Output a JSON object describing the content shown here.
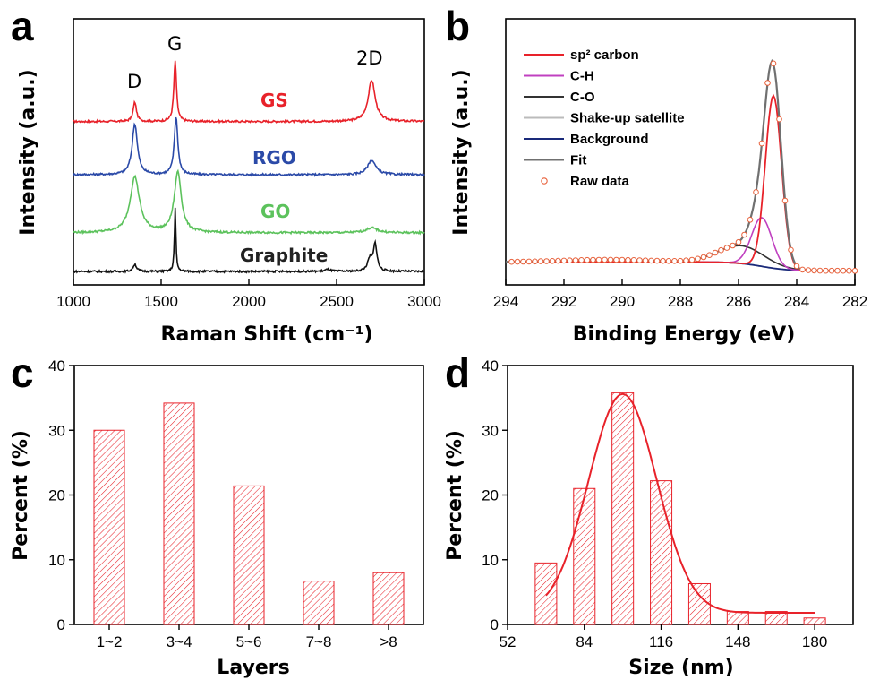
{
  "panels": {
    "a": {
      "letter": "a"
    },
    "b": {
      "letter": "b"
    },
    "c": {
      "letter": "c"
    },
    "d": {
      "letter": "d"
    }
  },
  "chart_data": [
    {
      "id": "a",
      "type": "line",
      "xlabel": "Raman Shift (cm⁻¹)",
      "ylabel": "Intensity (a.u.)",
      "xlim": [
        1000,
        3000
      ],
      "xticks": [
        "1000",
        "1500",
        "2000",
        "2500",
        "3000"
      ],
      "peak_labels": [
        "D",
        "G",
        "2D"
      ],
      "series": [
        {
          "name": "GS",
          "color": "#e8222a",
          "baseline": 0.62,
          "peaks": [
            [
              1350,
              0.08,
              11
            ],
            [
              1580,
              0.25,
              9
            ],
            [
              2700,
              0.17,
              24
            ]
          ]
        },
        {
          "name": "RGO",
          "color": "#2b4aa8",
          "baseline": 0.4,
          "peaks": [
            [
              1350,
              0.21,
              18
            ],
            [
              1585,
              0.24,
              12
            ],
            [
              2700,
              0.06,
              28
            ]
          ]
        },
        {
          "name": "GO",
          "color": "#5cc25c",
          "baseline": 0.16,
          "peaks": [
            [
              1350,
              0.23,
              32
            ],
            [
              1595,
              0.25,
              24
            ],
            [
              2700,
              0.02,
              40
            ]
          ]
        },
        {
          "name": "Graphite",
          "color": "#111111",
          "baseline": 0.0,
          "peaks": [
            [
              1350,
              0.03,
              12
            ],
            [
              1580,
              0.26,
              5
            ],
            [
              2450,
              0.008,
              20
            ],
            [
              2690,
              0.05,
              16
            ],
            [
              2720,
              0.11,
              12
            ]
          ]
        }
      ]
    },
    {
      "id": "b",
      "type": "line",
      "xlabel": "Binding Energy (eV)",
      "ylabel": "Intensity (a.u.)",
      "xlim": [
        294,
        282
      ],
      "xticks": [
        "294",
        "292",
        "290",
        "288",
        "286",
        "284",
        "282"
      ],
      "legend_placement": "top-left",
      "series": [
        {
          "name": "sp² carbon",
          "color": "#e8222a"
        },
        {
          "name": "C-H",
          "color": "#c040c0"
        },
        {
          "name": "C-O",
          "color": "#333333"
        },
        {
          "name": "Shake-up satellite",
          "color": "#bbbbbb"
        },
        {
          "name": "Background",
          "color": "#1a2a7a"
        },
        {
          "name": "Fit",
          "color": "#707070"
        },
        {
          "name": "Raw data",
          "color": "#e8603a",
          "marker": "open-circle"
        }
      ]
    },
    {
      "id": "c",
      "type": "bar",
      "xlabel": "Layers",
      "ylabel": "Percent (%)",
      "ylim": [
        0,
        40
      ],
      "yticks": [
        "0",
        "10",
        "20",
        "30",
        "40"
      ],
      "categories": [
        "1~2",
        "3~4",
        "5~6",
        "7~8",
        ">8"
      ],
      "values": [
        30,
        34.2,
        21.4,
        6.7,
        8
      ],
      "bar_color": "#e8222a"
    },
    {
      "id": "d",
      "type": "bar",
      "xlabel": "Size (nm)",
      "ylabel": "Percent (%)",
      "xlim": [
        52,
        196
      ],
      "ylim": [
        0,
        40
      ],
      "xticks": [
        "52",
        "84",
        "116",
        "148",
        "180"
      ],
      "yticks": [
        "0",
        "10",
        "20",
        "30",
        "40"
      ],
      "bin_centers": [
        68,
        84,
        100,
        116,
        132,
        148,
        164,
        180
      ],
      "values": [
        9.5,
        21,
        35.8,
        22.2,
        6.3,
        2,
        2,
        1
      ],
      "fit": {
        "type": "gaussian",
        "center": 100,
        "sigma": 14.2,
        "amplitude": 33.8,
        "offset": 1.8,
        "x_range": [
          68,
          180
        ]
      },
      "bar_color": "#e8222a"
    }
  ]
}
